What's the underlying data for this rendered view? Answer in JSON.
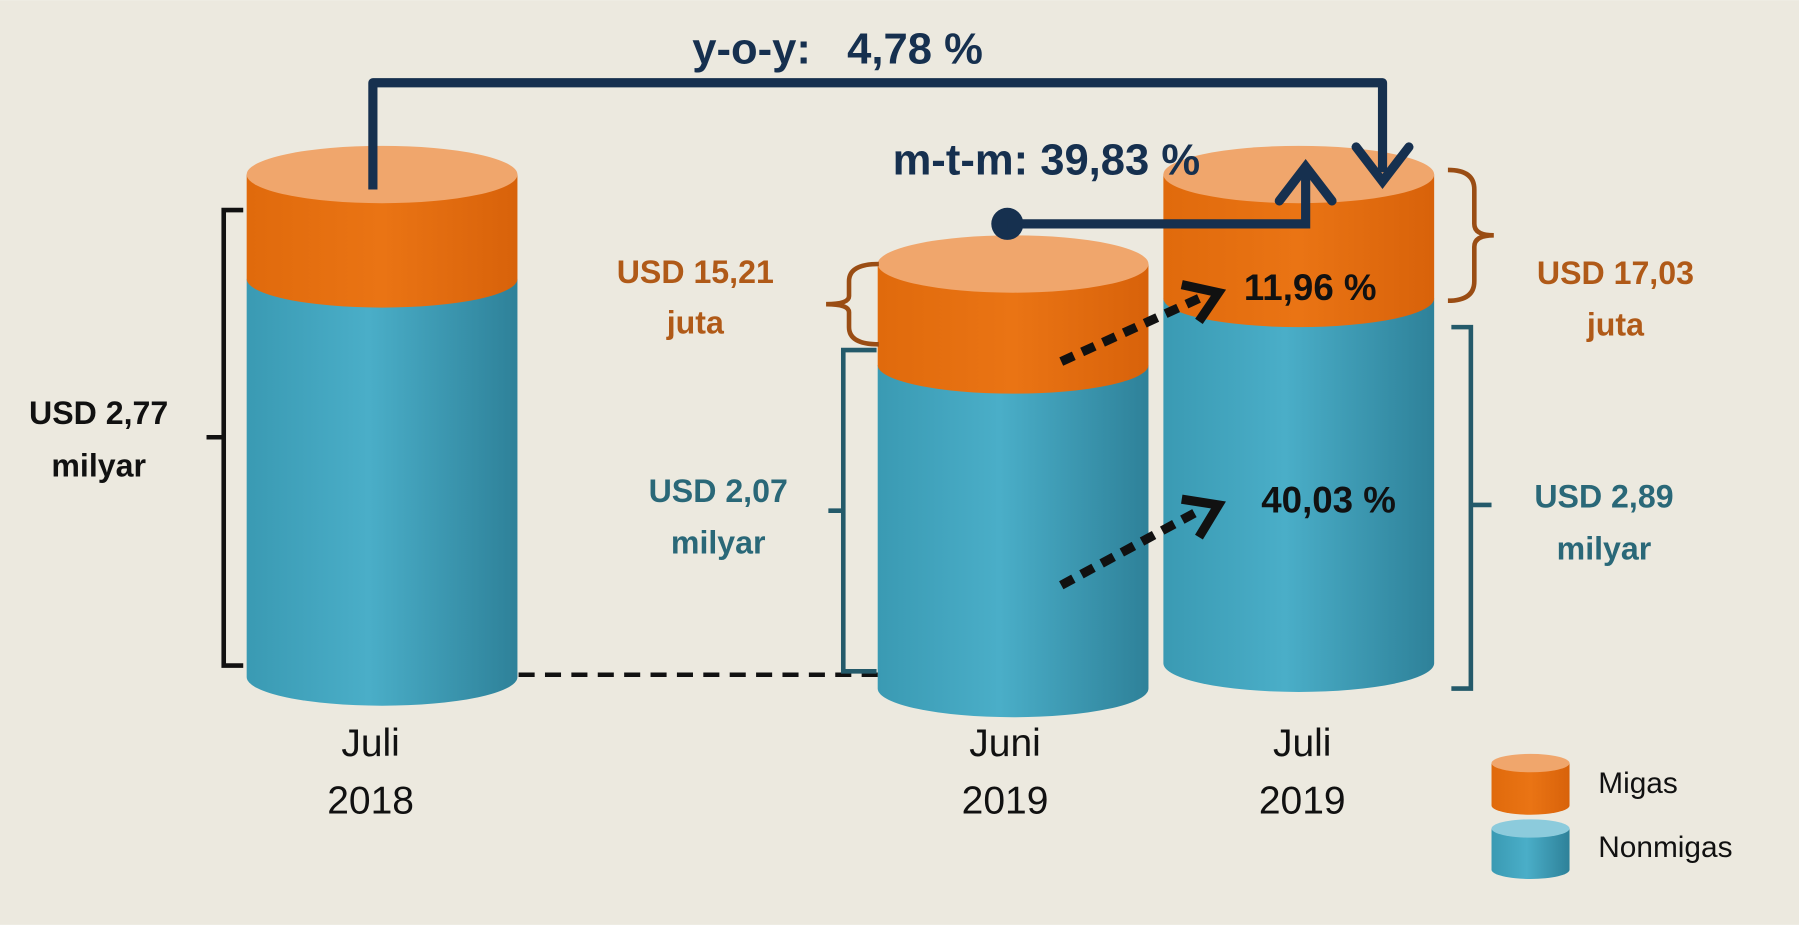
{
  "annotations": {
    "yoy": "y-o-y:   4,78 %",
    "mtm": "m-t-m: 39,83 %",
    "migas_growth": "11,96 %",
    "nonmigas_growth": "40,03 %"
  },
  "columns": [
    {
      "label": [
        "Juli",
        "2018"
      ],
      "total": [
        "USD 2,77",
        "milyar"
      ]
    },
    {
      "label": [
        "Juni",
        "2019"
      ],
      "migas": [
        "USD 15,21",
        "juta"
      ],
      "nonmigas": [
        "USD 2,07",
        "milyar"
      ]
    },
    {
      "label": [
        "Juli",
        "2019"
      ],
      "migas": [
        "USD 17,03",
        "juta"
      ],
      "nonmigas": [
        "USD 2,89",
        "milyar"
      ]
    }
  ],
  "legend": [
    "Migas",
    "Nonmigas"
  ]
}
